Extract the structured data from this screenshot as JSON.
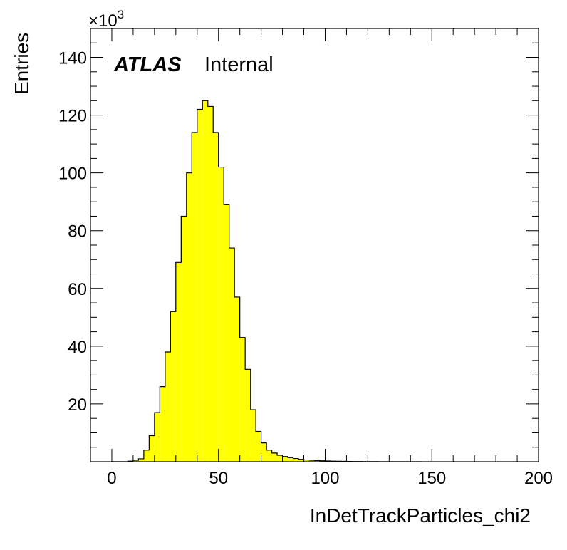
{
  "chart_data": {
    "type": "bar",
    "style": "step-histogram",
    "fill_color": "#ffff00",
    "line_color": "#000000",
    "xlabel": "InDetTrackParticles_chi2",
    "ylabel": "Entries",
    "y_multiplier": "×10",
    "y_multiplier_exp": "3",
    "xlim": [
      -10,
      200
    ],
    "ylim": [
      0,
      150
    ],
    "bin_width": 2.5,
    "x_start": 0,
    "x_ticks": [
      0,
      50,
      100,
      150,
      200
    ],
    "x_tick_labels": [
      "0",
      "50",
      "100",
      "150",
      "200"
    ],
    "y_ticks": [
      20,
      40,
      60,
      80,
      100,
      120,
      140
    ],
    "y_tick_labels": [
      "20",
      "40",
      "60",
      "80",
      "100",
      "120",
      "140"
    ],
    "values": [
      0,
      0,
      0,
      0.2,
      0.5,
      1,
      4,
      9,
      17,
      26,
      38,
      52,
      69,
      85,
      100,
      114,
      122,
      125,
      123,
      114,
      102,
      89,
      74,
      57,
      43,
      32,
      18,
      10.5,
      6.5,
      4,
      3,
      2.2,
      1.8,
      1.4,
      1.1,
      0.8,
      0.6,
      0.5,
      0.4,
      0.3,
      0.25,
      0.2,
      0.15,
      0.12,
      0.1,
      0.08,
      0.06,
      0.05,
      0.04,
      0.03,
      0.02,
      0.02,
      0.01,
      0.01,
      0.01,
      0.01,
      0,
      0
    ]
  },
  "labels": {
    "atlas": "ATLAS",
    "status": "Internal"
  }
}
